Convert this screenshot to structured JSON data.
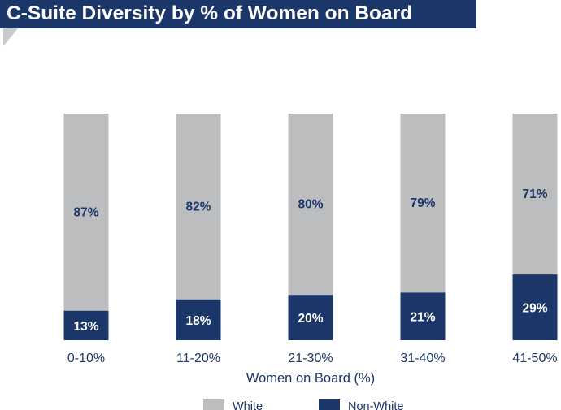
{
  "header": {
    "title": "C-Suite Diversity by % of Women on Board"
  },
  "colors": {
    "banner": "#1b3668",
    "white_series": "#bcbdbf",
    "nonwhite_series": "#1b3668",
    "white_label_text": "#1b3668",
    "nonwhite_label_text": "#ffffff"
  },
  "chart_data": {
    "type": "bar",
    "stacked": true,
    "categories": [
      "0-10%",
      "11-20%",
      "21-30%",
      "31-40%",
      "41-50%"
    ],
    "series": [
      {
        "name": "Non-White",
        "values": [
          13,
          18,
          20,
          21,
          29
        ],
        "labels": [
          "13%",
          "18%",
          "20%",
          "21%",
          "29%"
        ]
      },
      {
        "name": "White",
        "values": [
          87,
          82,
          80,
          79,
          71
        ],
        "labels": [
          "87%",
          "82%",
          "80%",
          "79%",
          "71%"
        ]
      }
    ],
    "title": "",
    "xlabel": "Women on Board (%)",
    "ylabel": "",
    "ylim": [
      0,
      100
    ],
    "grid": false,
    "legend": {
      "placement": "bottom",
      "entries": [
        "White",
        "Non-White"
      ]
    }
  }
}
